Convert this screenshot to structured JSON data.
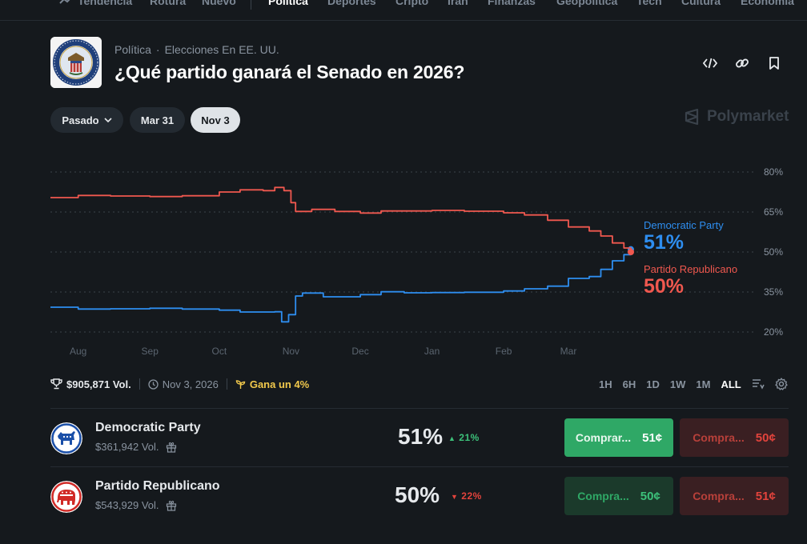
{
  "nav": {
    "items": [
      {
        "label": "Tendencia",
        "active": false
      },
      {
        "label": "Rotura",
        "active": false
      },
      {
        "label": "Nuevo",
        "active": false
      },
      {
        "label": "Política",
        "active": true
      },
      {
        "label": "Deportes",
        "active": false
      },
      {
        "label": "Cripto",
        "active": false
      },
      {
        "label": "Irán",
        "active": false
      },
      {
        "label": "Finanzas",
        "active": false
      },
      {
        "label": "Geopolítica",
        "active": false
      },
      {
        "label": "Tech",
        "active": false
      },
      {
        "label": "Cultura",
        "active": false
      },
      {
        "label": "Economía",
        "active": false
      }
    ]
  },
  "market": {
    "category": "Política",
    "subcategory": "Elecciones En EE. UU.",
    "title": "¿Qué partido ganará el Senado en 2026?",
    "brand": "Polymarket"
  },
  "dates": {
    "past_label": "Pasado",
    "items": [
      "Mar 31",
      "Nov 3"
    ],
    "selected": "Nov 3"
  },
  "stats": {
    "volume": "$905,871 Vol.",
    "end_date": "Nov 3, 2026",
    "promo": "Gana un 4%"
  },
  "ranges": {
    "items": [
      "1H",
      "6H",
      "1D",
      "1W",
      "1M",
      "ALL"
    ],
    "selected": "ALL"
  },
  "colors": {
    "dem": "#2e8ef0",
    "rep": "#f0584f",
    "buy_green": "#2fa866",
    "sell_red": "#e2433c"
  },
  "chart_data": {
    "type": "line",
    "x_tick_labels": [
      "Aug",
      "Sep",
      "Oct",
      "Nov",
      "Dec",
      "Jan",
      "Feb",
      "Mar"
    ],
    "y_ticks": [
      "80%",
      "65%",
      "50%",
      "35%",
      "20%"
    ],
    "ylim": [
      20,
      80
    ],
    "grid": true,
    "x_start": "Jul 20",
    "series": [
      {
        "name": "Democratic Party",
        "color": "#2e8ef0",
        "end_value": "51%",
        "points": [
          [
            "Jul 20",
            29.3
          ],
          [
            "Aug 1",
            28.6
          ],
          [
            "Aug 15",
            28.7
          ],
          [
            "Sep 1",
            28.9
          ],
          [
            "Sep 15",
            28.6
          ],
          [
            "Oct 1",
            28.2
          ],
          [
            "Oct 10",
            27.5
          ],
          [
            "Oct 25",
            27.6
          ],
          [
            "Oct 28",
            23.8
          ],
          [
            "Oct 31",
            26.5
          ],
          [
            "Nov 3",
            33.5
          ],
          [
            "Nov 6",
            34.6
          ],
          [
            "Nov 15",
            33.2
          ],
          [
            "Dec 1",
            34.0
          ],
          [
            "Dec 10",
            35.1
          ],
          [
            "Dec 20",
            34.7
          ],
          [
            "Jan 1",
            34.8
          ],
          [
            "Jan 15",
            34.9
          ],
          [
            "Feb 1",
            35.4
          ],
          [
            "Feb 10",
            36.2
          ],
          [
            "Feb 20",
            37.2
          ],
          [
            "Mar 1",
            40.1
          ],
          [
            "Mar 10",
            40.8
          ],
          [
            "Mar 15",
            43.5
          ],
          [
            "Mar 20",
            46.7
          ],
          [
            "Mar 25",
            49.0
          ],
          [
            "Mar 28",
            51.0
          ]
        ]
      },
      {
        "name": "Partido Republicano",
        "color": "#f0584f",
        "end_value": "50%",
        "points": [
          [
            "Jul 20",
            70.4
          ],
          [
            "Aug 1",
            71.2
          ],
          [
            "Aug 15",
            71.0
          ],
          [
            "Sep 1",
            70.8
          ],
          [
            "Sep 15",
            71.1
          ],
          [
            "Oct 1",
            72.5
          ],
          [
            "Oct 10",
            73.3
          ],
          [
            "Oct 20",
            73.0
          ],
          [
            "Oct 25",
            74.2
          ],
          [
            "Oct 29",
            73.0
          ],
          [
            "Nov 1",
            68.5
          ],
          [
            "Nov 3",
            65.2
          ],
          [
            "Nov 10",
            66.0
          ],
          [
            "Nov 20",
            65.2
          ],
          [
            "Dec 1",
            64.6
          ],
          [
            "Dec 10",
            65.4
          ],
          [
            "Jan 1",
            65.6
          ],
          [
            "Jan 15",
            65.3
          ],
          [
            "Feb 1",
            64.7
          ],
          [
            "Feb 10",
            63.9
          ],
          [
            "Feb 20",
            61.9
          ],
          [
            "Mar 1",
            59.4
          ],
          [
            "Mar 10",
            57.9
          ],
          [
            "Mar 15",
            56.0
          ],
          [
            "Mar 20",
            53.4
          ],
          [
            "Mar 25",
            51.5
          ],
          [
            "Mar 28",
            50.0
          ]
        ]
      }
    ]
  },
  "outcomes": [
    {
      "name": "Democratic Party",
      "volume": "$361,942 Vol.",
      "percent": "51%",
      "change": "21%",
      "change_dir": "up",
      "buy_yes_label": "Comprar...",
      "buy_yes_price": "51¢",
      "buy_no_label": "Compra...",
      "buy_no_price": "50¢"
    },
    {
      "name": "Partido Republicano",
      "volume": "$543,929 Vol.",
      "percent": "50%",
      "change": "22%",
      "change_dir": "down",
      "buy_yes_label": "Compra...",
      "buy_yes_price": "50¢",
      "buy_no_label": "Compra...",
      "buy_no_price": "51¢"
    }
  ]
}
